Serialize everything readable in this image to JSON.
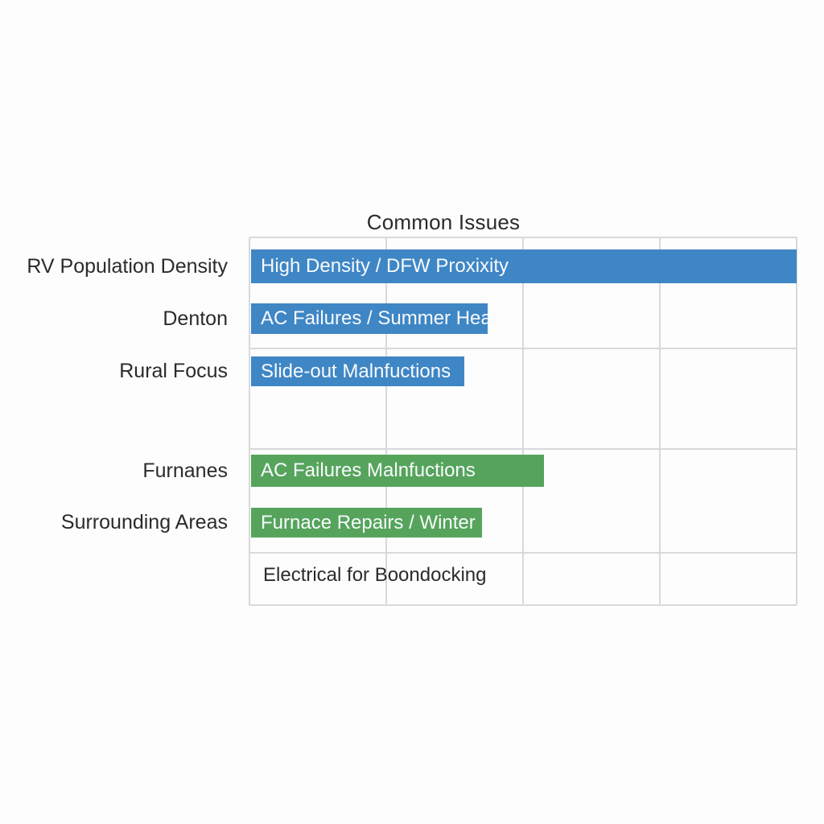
{
  "chart_data": {
    "type": "bar",
    "orientation": "horizontal",
    "title": "Common Issues",
    "xlabel": "",
    "ylabel": "",
    "xlim": [
      0,
      4
    ],
    "grid": true,
    "legend": "none",
    "categories": [
      "RV Population Density",
      "Denton",
      "Rural Focus",
      "Furnanes",
      "Surrounding Areas",
      ""
    ],
    "bars": [
      {
        "category": "RV Population Density",
        "label": "High Density / DFW Proxixity",
        "value": 4.0,
        "group": "blue"
      },
      {
        "category": "Denton",
        "label": "AC Failures / Summer Heat",
        "value": 1.74,
        "group": "blue"
      },
      {
        "category": "Rural Focus",
        "label": "Slide-out Malnfuctions",
        "value": 1.57,
        "group": "blue"
      },
      {
        "category": "Furnanes",
        "label": "AC Failures Malnfuctions",
        "value": 2.15,
        "group": "green"
      },
      {
        "category": "Surrounding Areas",
        "label": "Furnace Repairs / Winter",
        "value": 1.7,
        "group": "green"
      },
      {
        "category": "",
        "label": "Electrical for Boondocking",
        "value": 0,
        "group": "none"
      }
    ],
    "colors": {
      "blue": "#3f86c5",
      "green": "#56a45c",
      "none": "transparent",
      "gridline": "#d7d9db",
      "text_dark": "#2b2b2b",
      "text_on_bar": "#f7fafc",
      "background": "#fdfdfd"
    }
  }
}
